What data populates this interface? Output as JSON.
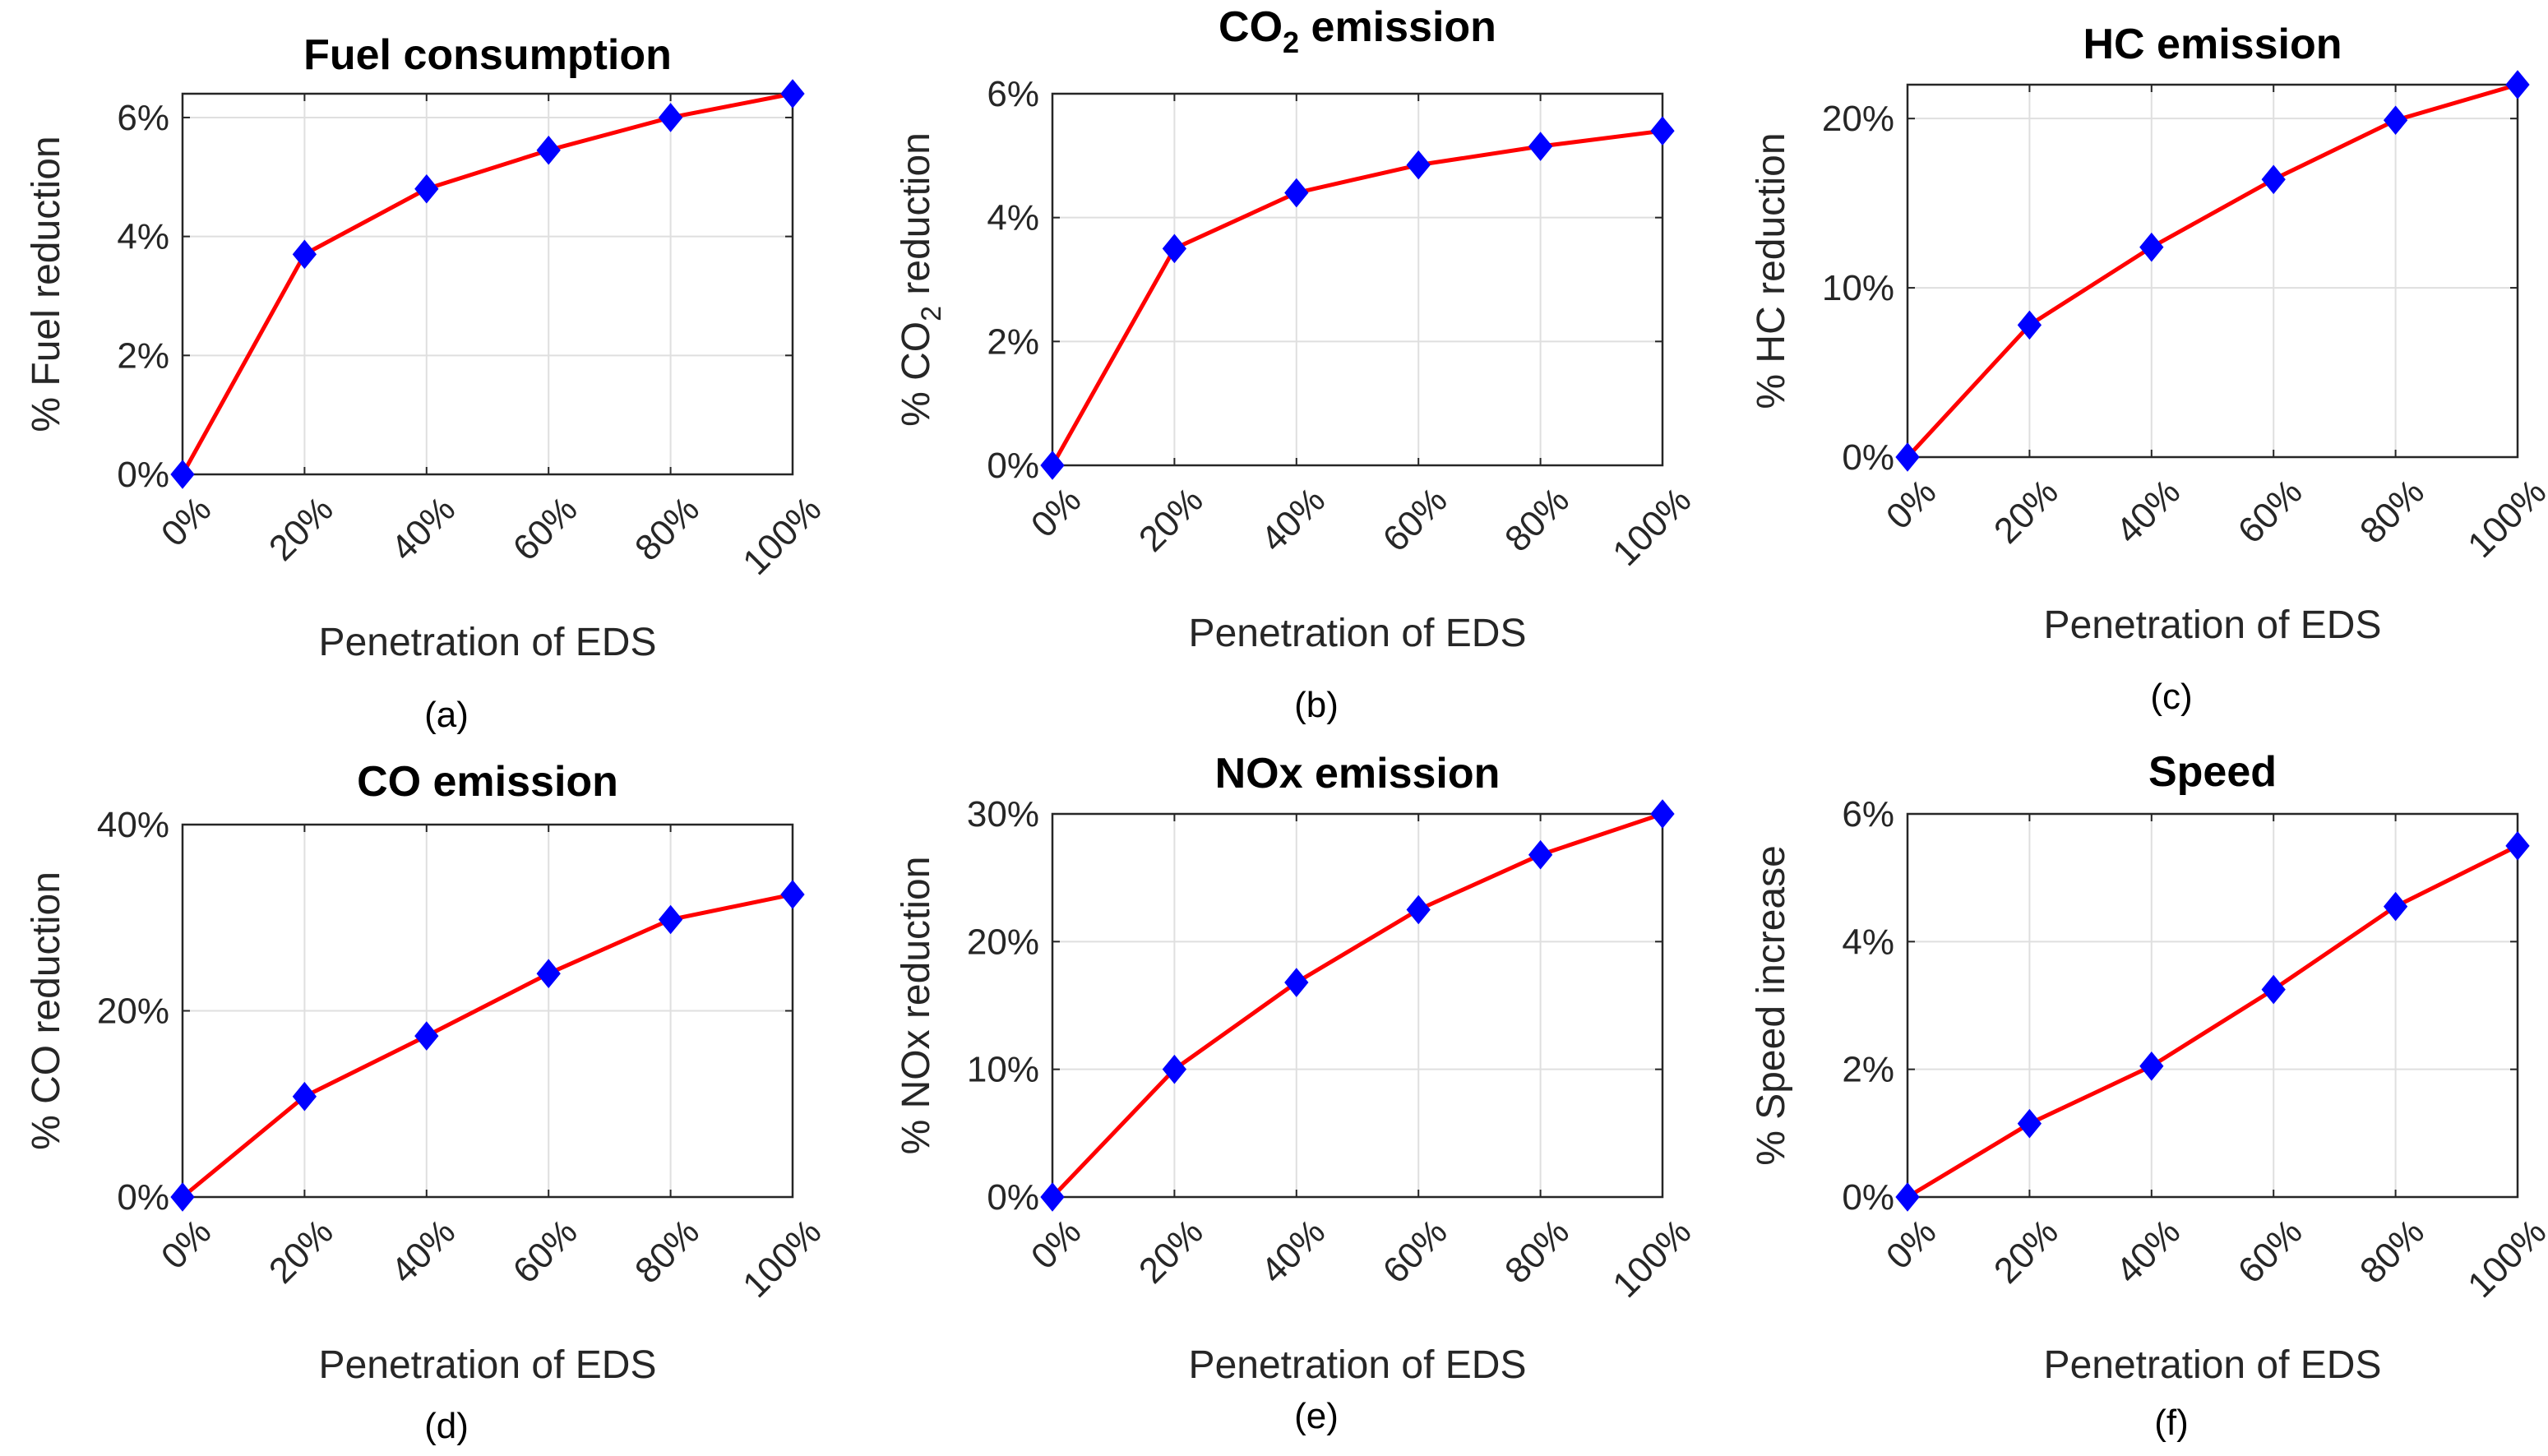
{
  "chart_data": [
    {
      "panel": "a",
      "type": "line",
      "caption": "(a)",
      "title": "Fuel consumption",
      "xlabel": "Penetration of EDS",
      "ylabel": "% Fuel reduction",
      "categories": [
        "0%",
        "20%",
        "40%",
        "60%",
        "80%",
        "100%"
      ],
      "yticks": [
        0,
        2,
        4,
        6
      ],
      "ytick_labels": [
        "0%",
        "2%",
        "4%",
        "6%"
      ],
      "ylim": [
        0,
        6.4
      ],
      "grid": true,
      "series": [
        {
          "name": "Fuel reduction",
          "color": "#ff0000",
          "marker_color": "#0000ff",
          "marker": "diamond",
          "values": [
            0,
            3.7,
            4.8,
            5.45,
            6.0,
            6.4
          ]
        }
      ]
    },
    {
      "panel": "b",
      "type": "line",
      "caption": "(b)",
      "title": "CO",
      "title_sub": "2",
      "title_rest": " emission",
      "xlabel": "Penetration of EDS",
      "ylabel": "% CO",
      "ylabel_sub": "2",
      "ylabel_rest": " reduction",
      "categories": [
        "0%",
        "20%",
        "40%",
        "60%",
        "80%",
        "100%"
      ],
      "yticks": [
        0,
        2,
        4,
        6
      ],
      "ytick_labels": [
        "0%",
        "2%",
        "4%",
        "6%"
      ],
      "ylim": [
        0,
        6
      ],
      "grid": true,
      "series": [
        {
          "name": "CO2 reduction",
          "color": "#ff0000",
          "marker_color": "#0000ff",
          "marker": "diamond",
          "values": [
            0,
            3.5,
            4.4,
            4.85,
            5.15,
            5.4
          ]
        }
      ]
    },
    {
      "panel": "c",
      "type": "line",
      "caption": "(c)",
      "title": "HC emission",
      "xlabel": "Penetration of EDS",
      "ylabel": "% HC reduction",
      "categories": [
        "0%",
        "20%",
        "40%",
        "60%",
        "80%",
        "100%"
      ],
      "yticks": [
        0,
        10,
        20
      ],
      "ytick_labels": [
        "0%",
        "10%",
        "20%"
      ],
      "ylim": [
        0,
        22
      ],
      "grid": true,
      "series": [
        {
          "name": "HC reduction",
          "color": "#ff0000",
          "marker_color": "#0000ff",
          "marker": "diamond",
          "values": [
            0,
            7.8,
            12.4,
            16.4,
            19.9,
            22.0
          ]
        }
      ]
    },
    {
      "panel": "d",
      "type": "line",
      "caption": "(d)",
      "title": "CO emission",
      "xlabel": "Penetration of EDS",
      "ylabel": "% CO reduction",
      "categories": [
        "0%",
        "20%",
        "40%",
        "60%",
        "80%",
        "100%"
      ],
      "yticks": [
        0,
        20,
        40
      ],
      "ytick_labels": [
        "0%",
        "20%",
        "40%"
      ],
      "ylim": [
        0,
        40
      ],
      "grid": true,
      "series": [
        {
          "name": "CO reduction",
          "color": "#ff0000",
          "marker_color": "#0000ff",
          "marker": "diamond",
          "values": [
            0,
            10.8,
            17.3,
            24.0,
            29.8,
            32.5
          ]
        }
      ]
    },
    {
      "panel": "e",
      "type": "line",
      "caption": "(e)",
      "title": "NOx emission",
      "xlabel": "Penetration of EDS",
      "ylabel": "% NOx reduction",
      "categories": [
        "0%",
        "20%",
        "40%",
        "60%",
        "80%",
        "100%"
      ],
      "yticks": [
        0,
        10,
        20,
        30
      ],
      "ytick_labels": [
        "0%",
        "10%",
        "20%",
        "30%"
      ],
      "ylim": [
        0,
        30
      ],
      "grid": true,
      "series": [
        {
          "name": "NOx reduction",
          "color": "#ff0000",
          "marker_color": "#0000ff",
          "marker": "diamond",
          "values": [
            0,
            10.0,
            16.8,
            22.5,
            26.8,
            30.0
          ]
        }
      ]
    },
    {
      "panel": "f",
      "type": "line",
      "caption": "(f)",
      "title": "Speed",
      "xlabel": "Penetration of EDS",
      "ylabel": "% Speed increase",
      "categories": [
        "0%",
        "20%",
        "40%",
        "60%",
        "80%",
        "100%"
      ],
      "yticks": [
        0,
        2,
        4,
        6
      ],
      "ytick_labels": [
        "0%",
        "2%",
        "4%",
        "6%"
      ],
      "ylim": [
        0,
        6
      ],
      "grid": true,
      "series": [
        {
          "name": "Speed increase",
          "color": "#ff0000",
          "marker_color": "#0000ff",
          "marker": "diamond",
          "values": [
            0,
            1.15,
            2.05,
            3.25,
            4.55,
            5.5
          ]
        }
      ]
    }
  ]
}
